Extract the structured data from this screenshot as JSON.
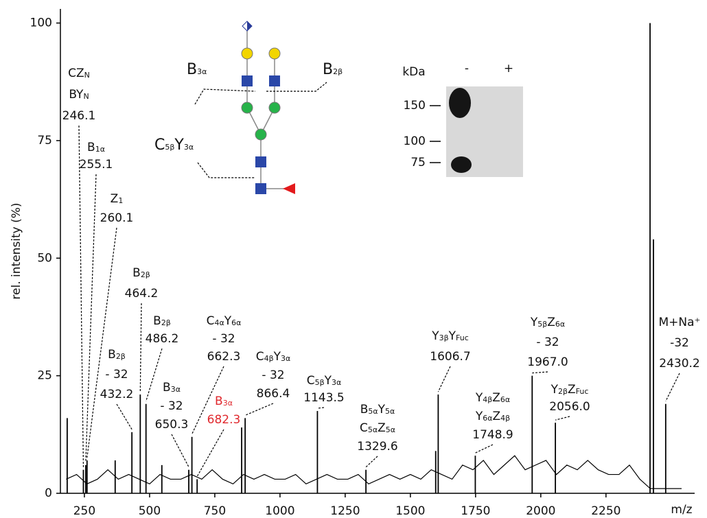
{
  "chart_data": {
    "type": "spectrum",
    "x_label": "m/z",
    "y_label": "rel. intensity (%)",
    "xlim": [
      158,
      2590
    ],
    "ylim": [
      0,
      103
    ],
    "xticks": [
      250,
      500,
      750,
      1000,
      1250,
      1500,
      1750,
      2000,
      2250
    ],
    "yticks": [
      0,
      25,
      50,
      75,
      100
    ],
    "color": "#000000",
    "baseline": {
      "x": [
        180,
        220,
        260,
        300,
        340,
        380,
        420,
        460,
        500,
        540,
        580,
        620,
        660,
        700,
        740,
        780,
        820,
        860,
        900,
        940,
        980,
        1020,
        1060,
        1100,
        1140,
        1180,
        1220,
        1260,
        1300,
        1340,
        1380,
        1420,
        1460,
        1500,
        1540,
        1580,
        1620,
        1660,
        1700,
        1740,
        1780,
        1820,
        1860,
        1900,
        1940,
        1980,
        2020,
        2060,
        2100,
        2140,
        2180,
        2220,
        2260,
        2300,
        2340,
        2380,
        2420,
        2460,
        2500,
        2540
      ],
      "values": [
        3,
        4,
        2,
        3,
        5,
        3,
        4,
        3,
        2,
        4,
        3,
        3,
        4,
        3,
        5,
        3,
        2,
        4,
        3,
        4,
        3,
        3,
        4,
        2,
        3,
        4,
        3,
        3,
        4,
        2,
        3,
        4,
        3,
        4,
        3,
        5,
        4,
        3,
        6,
        5,
        7,
        4,
        6,
        8,
        5,
        6,
        7,
        4,
        6,
        5,
        7,
        5,
        4,
        4,
        6,
        3,
        1,
        1,
        1,
        1
      ]
    },
    "peaks": {
      "x": [
        184,
        246.1,
        255.1,
        260.1,
        368,
        432.2,
        464.2,
        486.2,
        547,
        650.3,
        662.3,
        682.3,
        853,
        866.4,
        1143.5,
        1329.6,
        1597,
        1606.7,
        1748.9,
        1967.0,
        2056.0,
        2419,
        2432,
        2479
      ],
      "values": [
        16,
        5,
        6,
        7,
        7,
        13,
        21,
        19,
        6,
        5,
        12,
        3,
        14,
        16,
        17.5,
        5,
        9,
        21,
        8,
        25,
        15,
        100,
        54,
        19
      ]
    },
    "annotations": [
      {
        "lines": [
          [
            "CZ",
            "N"
          ],
          [
            "BY",
            "N"
          ],
          [
            "246.1"
          ]
        ]
      },
      {
        "lines": [
          [
            "B",
            "1α"
          ],
          [
            "255.1"
          ]
        ]
      },
      {
        "lines": [
          [
            "Z",
            "1"
          ],
          [
            "260.1"
          ]
        ]
      },
      {
        "lines": [
          [
            "B",
            "2β"
          ],
          [
            "464.2"
          ]
        ]
      },
      {
        "lines": [
          [
            "B",
            "2β"
          ],
          [
            "486.2"
          ]
        ]
      },
      {
        "lines": [
          [
            "B",
            "2β"
          ],
          [
            "- 32"
          ],
          [
            "432.2"
          ]
        ]
      },
      {
        "lines": [
          [
            "B",
            "3α"
          ],
          [
            "- 32"
          ],
          [
            "650.3"
          ]
        ]
      },
      {
        "lines": [
          [
            "C",
            "4α",
            "Y",
            "6α"
          ],
          [
            "- 32"
          ],
          [
            "662.3"
          ]
        ]
      },
      {
        "lines": [
          [
            "B",
            "3α"
          ],
          [
            "682.3"
          ]
        ],
        "color": "#e0282d"
      },
      {
        "lines": [
          [
            "C",
            "4β",
            "Y",
            "3α"
          ],
          [
            "- 32"
          ],
          [
            "866.4"
          ]
        ]
      },
      {
        "lines": [
          [
            "C",
            "5β",
            "Y",
            "3α"
          ],
          [
            "1143.5"
          ]
        ]
      },
      {
        "lines": [
          [
            "B",
            "5α",
            "Y",
            "5α"
          ],
          [
            "C",
            "5α",
            "Z",
            "5α"
          ],
          [
            "1329.6"
          ]
        ]
      },
      {
        "lines": [
          [
            "Y",
            "3β",
            "Y",
            "Fuc"
          ],
          [
            "1606.7"
          ]
        ]
      },
      {
        "lines": [
          [
            "Y",
            "4β",
            "Z",
            "6α"
          ],
          [
            "Y",
            "6α",
            "Z",
            "4β"
          ],
          [
            "1748.9"
          ]
        ]
      },
      {
        "lines": [
          [
            "Y",
            "5β",
            "Z",
            "6α"
          ],
          [
            "- 32"
          ],
          [
            "1967.0"
          ]
        ]
      },
      {
        "lines": [
          [
            "Y",
            "2β",
            "Z",
            "Fuc"
          ],
          [
            "2056.0"
          ]
        ]
      },
      {
        "lines": [
          [
            "M+Na⁺"
          ],
          [
            "-32"
          ],
          [
            "2430.2"
          ]
        ]
      }
    ]
  },
  "glycan": {
    "labels": [
      [
        "B",
        "3α"
      ],
      [
        "B",
        "2β"
      ],
      [
        "C",
        "5β",
        "Y",
        "3α"
      ]
    ]
  },
  "gel": {
    "unit": "kDa",
    "lanes": [
      "-",
      "+"
    ],
    "markers": [
      "150",
      "100",
      "75"
    ]
  }
}
